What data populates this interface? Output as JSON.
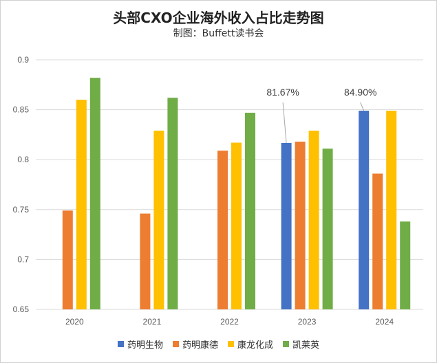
{
  "title": "头部CXO企业海外收入占比走势图",
  "subtitle": "制图：Buffett读书会",
  "chart_data": {
    "type": "bar",
    "categories": [
      "2020",
      "2021",
      "2022",
      "2023",
      "2024"
    ],
    "ylim": [
      0.65,
      0.9
    ],
    "yticks": [
      "0.65",
      "0.7",
      "0.75",
      "0.8",
      "0.85",
      "0.9"
    ],
    "grid": true,
    "legend_position": "bottom",
    "series": [
      {
        "name": "药明生物",
        "color": "#4472C4",
        "values": [
          null,
          null,
          null,
          0.8167,
          0.849
        ]
      },
      {
        "name": "药明康德",
        "color": "#ED7D31",
        "values": [
          0.749,
          0.746,
          0.809,
          0.818,
          0.786
        ]
      },
      {
        "name": "康龙化成",
        "color": "#FFC000",
        "values": [
          0.86,
          0.829,
          0.817,
          0.829,
          0.849
        ]
      },
      {
        "name": "凯莱英",
        "color": "#70AD47",
        "values": [
          0.882,
          0.862,
          0.847,
          0.811,
          0.738
        ]
      }
    ],
    "annotations": [
      {
        "text": "81.67%",
        "category": "2023",
        "series": "药明生物"
      },
      {
        "text": "84.90%",
        "category": "2024",
        "series": "药明生物"
      }
    ]
  }
}
